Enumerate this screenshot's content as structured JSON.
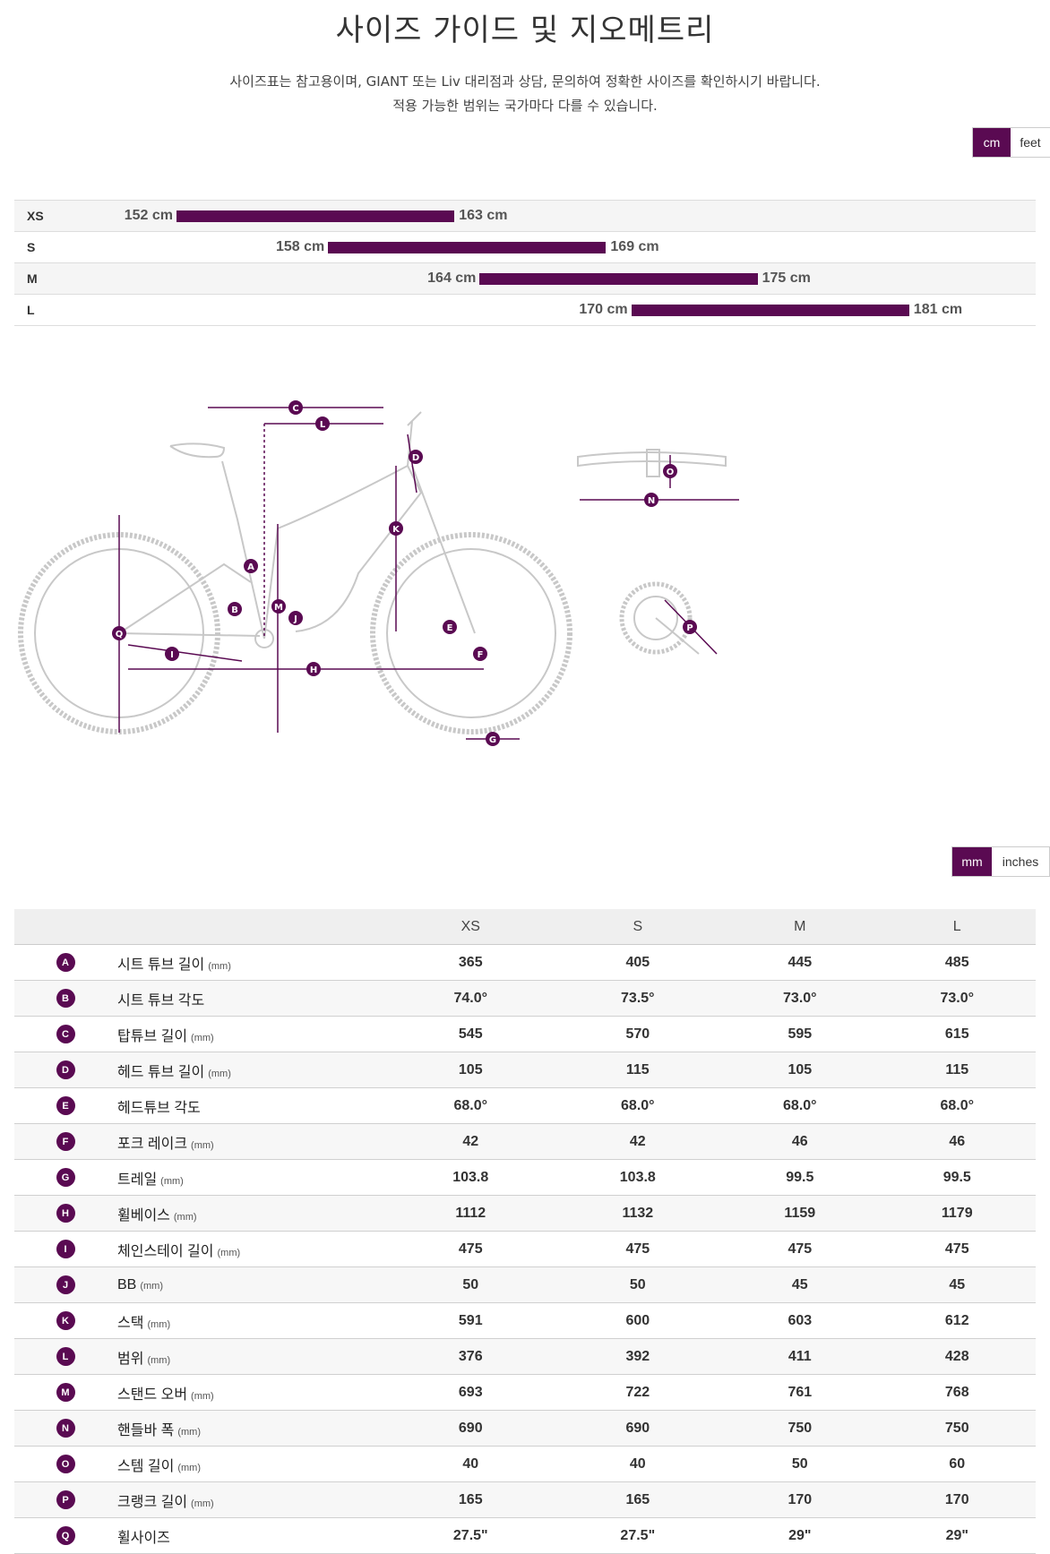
{
  "title": "사이즈 가이드 및 지오메트리",
  "subtitle_line1": "사이즈표는 참고용이며, GIANT 또는 Liv 대리점과 상담, 문의하여 정확한 사이즈를 확인하시기 바랍니다.",
  "subtitle_line2": "적용 가능한 범위는 국가마다 다를 수 있습니다.",
  "height_units": {
    "active": "cm",
    "options": [
      "cm",
      "feet"
    ]
  },
  "size_ranges": [
    {
      "size": "XS",
      "min": "152 cm",
      "max": "163 cm",
      "min_cm": 152,
      "max_cm": 163
    },
    {
      "size": "S",
      "min": "158 cm",
      "max": "169 cm",
      "min_cm": 158,
      "max_cm": 169
    },
    {
      "size": "M",
      "min": "164 cm",
      "max": "175 cm",
      "min_cm": 164,
      "max_cm": 175
    },
    {
      "size": "L",
      "min": "170 cm",
      "max": "181 cm",
      "min_cm": 170,
      "max_cm": 181
    }
  ],
  "diagram_labels": [
    "A",
    "B",
    "C",
    "D",
    "E",
    "F",
    "G",
    "H",
    "I",
    "J",
    "K",
    "L",
    "M",
    "N",
    "O",
    "P",
    "Q"
  ],
  "geometry_units": {
    "active": "mm",
    "options": [
      "mm",
      "inches"
    ]
  },
  "geometry": {
    "columns": [
      "XS",
      "S",
      "M",
      "L"
    ],
    "rows": [
      {
        "letter": "A",
        "name": "시트 튜브 길이",
        "unit": "(mm)",
        "values": [
          "365",
          "405",
          "445",
          "485"
        ]
      },
      {
        "letter": "B",
        "name": "시트 튜브 각도",
        "unit": "",
        "values": [
          "74.0°",
          "73.5°",
          "73.0°",
          "73.0°"
        ]
      },
      {
        "letter": "C",
        "name": "탑튜브 길이",
        "unit": "(mm)",
        "values": [
          "545",
          "570",
          "595",
          "615"
        ]
      },
      {
        "letter": "D",
        "name": "헤드 튜브 길이",
        "unit": "(mm)",
        "values": [
          "105",
          "115",
          "105",
          "115"
        ]
      },
      {
        "letter": "E",
        "name": "헤드튜브 각도",
        "unit": "",
        "values": [
          "68.0°",
          "68.0°",
          "68.0°",
          "68.0°"
        ]
      },
      {
        "letter": "F",
        "name": "포크 레이크",
        "unit": "(mm)",
        "values": [
          "42",
          "42",
          "46",
          "46"
        ]
      },
      {
        "letter": "G",
        "name": "트레일",
        "unit": "(mm)",
        "values": [
          "103.8",
          "103.8",
          "99.5",
          "99.5"
        ]
      },
      {
        "letter": "H",
        "name": "휠베이스",
        "unit": "(mm)",
        "values": [
          "1112",
          "1132",
          "1159",
          "1179"
        ]
      },
      {
        "letter": "I",
        "name": "체인스테이 길이",
        "unit": "(mm)",
        "values": [
          "475",
          "475",
          "475",
          "475"
        ]
      },
      {
        "letter": "J",
        "name": "BB",
        "unit": "(mm)",
        "values": [
          "50",
          "50",
          "45",
          "45"
        ]
      },
      {
        "letter": "K",
        "name": "스택",
        "unit": "(mm)",
        "values": [
          "591",
          "600",
          "603",
          "612"
        ]
      },
      {
        "letter": "L",
        "name": "범위",
        "unit": "(mm)",
        "values": [
          "376",
          "392",
          "411",
          "428"
        ]
      },
      {
        "letter": "M",
        "name": "스탠드 오버",
        "unit": "(mm)",
        "values": [
          "693",
          "722",
          "761",
          "768"
        ]
      },
      {
        "letter": "N",
        "name": "핸들바 폭",
        "unit": "(mm)",
        "values": [
          "690",
          "690",
          "750",
          "750"
        ]
      },
      {
        "letter": "O",
        "name": "스템 길이",
        "unit": "(mm)",
        "values": [
          "40",
          "40",
          "50",
          "60"
        ]
      },
      {
        "letter": "P",
        "name": "크랭크 길이",
        "unit": "(mm)",
        "values": [
          "165",
          "165",
          "170",
          "170"
        ]
      },
      {
        "letter": "Q",
        "name": "휠사이즈",
        "unit": "",
        "values": [
          "27.5\"",
          "27.5\"",
          "29\"",
          "29\""
        ]
      }
    ]
  },
  "colors": {
    "accent": "#5a0a52"
  }
}
